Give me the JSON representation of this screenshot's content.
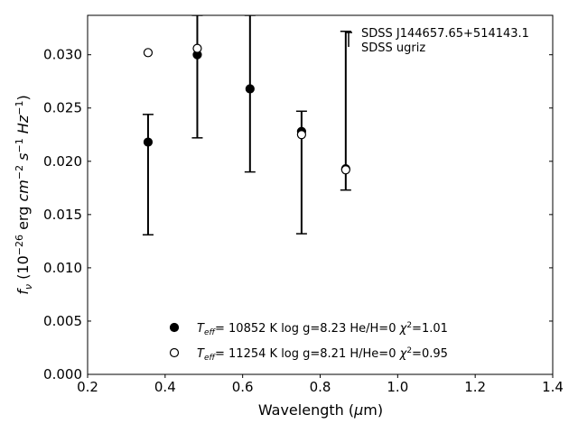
{
  "chart_data": {
    "type": "scatter",
    "xlabel": "Wavelength (μm)",
    "ylabel": "f_ν (10^-26 erg cm^-2 s^-1 Hz^-1)",
    "xlim": [
      0.2,
      1.4
    ],
    "ylim": [
      0.0,
      0.0337
    ],
    "xticks": [
      "0.2",
      "0.4",
      "0.6",
      "0.8",
      "1.0",
      "1.2",
      "1.4"
    ],
    "yticks": [
      "0.000",
      "0.005",
      "0.010",
      "0.015",
      "0.020",
      "0.025",
      "0.030"
    ],
    "grid": false,
    "legend_position": "bottom-center",
    "annotation": {
      "line1": "SDSS J144657.65+514143.1",
      "line2": "SDSS ugriz"
    },
    "series": [
      {
        "name": "T_eff= 10852 K  log g=8.23  He/H=0  χ²=1.01",
        "marker": "filled-circle",
        "points": [
          {
            "x": 0.356,
            "y": 0.0218
          },
          {
            "x": 0.483,
            "y": 0.03
          },
          {
            "x": 0.619,
            "y": 0.0268
          },
          {
            "x": 0.752,
            "y": 0.0228
          },
          {
            "x": 0.866,
            "y": 0.0193
          }
        ]
      },
      {
        "name": "T_eff= 11254 K  log g=8.21  H/He=0  χ²=0.95",
        "marker": "open-circle",
        "points": [
          {
            "x": 0.356,
            "y": 0.0302
          },
          {
            "x": 0.483,
            "y": 0.0306
          },
          {
            "x": 0.752,
            "y": 0.0225
          },
          {
            "x": 0.866,
            "y": 0.0192
          }
        ]
      }
    ],
    "errorbars": [
      {
        "x": 0.356,
        "low": 0.0131,
        "high": 0.0244
      },
      {
        "x": 0.483,
        "low": 0.0222,
        "high": 0.0337
      },
      {
        "x": 0.619,
        "low": 0.019,
        "high": 0.0337
      },
      {
        "x": 0.752,
        "low": 0.0132,
        "high": 0.0247
      },
      {
        "x": 0.866,
        "low": 0.0173,
        "high": 0.0322
      }
    ],
    "legend": {
      "filled": {
        "T": "10852 K",
        "logg": "log g=8.23",
        "comp": "He/H=0",
        "chi": "=1.01"
      },
      "open": {
        "T": "11254 K",
        "logg": "log g=8.21",
        "comp": "H/He=0",
        "chi": "=0.95"
      }
    }
  }
}
